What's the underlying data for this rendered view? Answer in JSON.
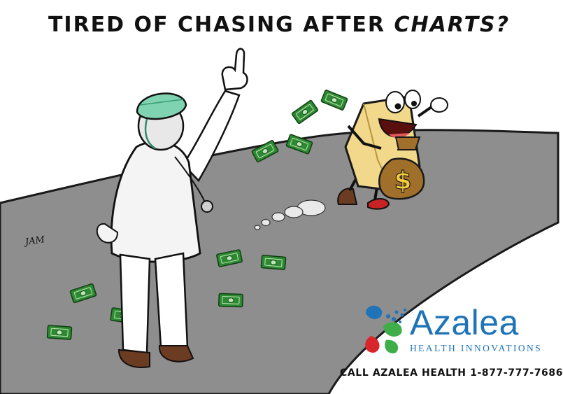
{
  "headline": {
    "lead": "TIRED OF CHASING AFTER",
    "emphasis": "CHARTS?"
  },
  "signature": "JAM",
  "money_bag": {
    "symbol": "$"
  },
  "logo": {
    "name": "Azalea",
    "tagline": "HEALTH INNOVATIONS"
  },
  "cta": "CALL AZALEA HEALTH 1-877-777-7686",
  "colors": {
    "road": "#8e8e8e",
    "cash": "#2e8a32",
    "surgeon_cap": "#7fd3b0",
    "chart_folder": "#f2d88a",
    "money_bag": "#a0702a",
    "brand_blue": "#1f74b8",
    "brand_green": "#3fae49",
    "brand_red": "#d9262b"
  }
}
